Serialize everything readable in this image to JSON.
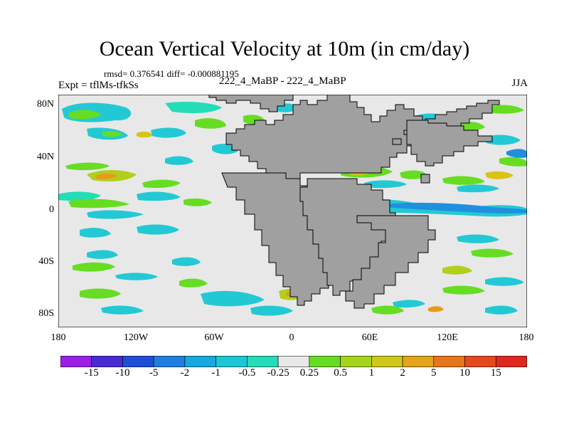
{
  "title": "Ocean Vertical Velocity at 10m (in cm/day)",
  "stats": "rmsd= 0.376541 diff= -0.000881195",
  "left_label": "Expt = tflMs-tfkSs",
  "center_label": "222_4_MaBP - 222_4_MaBP",
  "right_label": "JJA",
  "lat_labels": [
    "80N",
    "40N",
    "0",
    "40S",
    "80S"
  ],
  "lon_labels": [
    "180",
    "120W",
    "60W",
    "0",
    "60E",
    "120E",
    "180"
  ],
  "colorbar": {
    "labels": [
      "-15",
      "-10",
      "-5",
      "-2",
      "-1",
      "-0.5",
      "-0.25",
      "0.25",
      "0.5",
      "1",
      "2",
      "5",
      "10",
      "15"
    ],
    "colors": [
      "#9c1fe8",
      "#4a2ad6",
      "#1e4fd8",
      "#1f7fe0",
      "#15a9e0",
      "#1cc7d6",
      "#22ddb8",
      "#e8e8e8",
      "#66dd22",
      "#a6d41c",
      "#d0c818",
      "#e3a51a",
      "#e8761a",
      "#e5481c",
      "#e0281f"
    ]
  },
  "colors": {
    "land": "#a0a0a0",
    "ocean_background": "#e8e8e8",
    "cyan": "#22c9d4",
    "teal": "#22ddb8",
    "green": "#66dd22",
    "olive": "#b0d01c",
    "yellow": "#d6c518",
    "orange": "#e89a1a",
    "blue": "#1f8fe0"
  }
}
